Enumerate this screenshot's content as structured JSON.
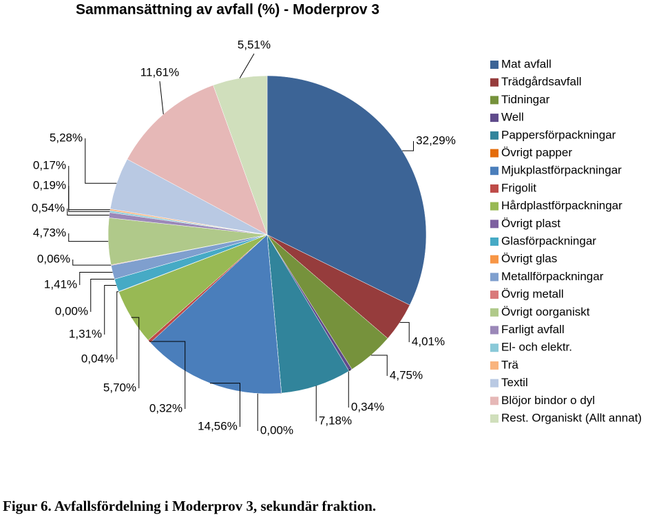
{
  "chart_data": {
    "type": "pie",
    "title": "Sammansättning av avfall (%) - Moderprov 3",
    "categories": [
      "Mat avfall",
      "Trädgårdsavfall",
      "Tidningar",
      "Well",
      "Pappersförpackningar",
      "Övrigt papper",
      "Mjukplastförpackningar",
      "Frigolit",
      "Hårdplastförpackningar",
      "Övrigt plast",
      "Glasförpackningar",
      "Övrigt glas",
      "Metallförpackningar",
      "Övrig metall",
      "Övrigt oorganiskt",
      "Farligt avfall",
      "El- och elektr.",
      "Trä",
      "Textil",
      "Blöjor bindor o dyl",
      "Rest. Organiskt (Allt annat)"
    ],
    "values": [
      32.29,
      4.01,
      4.75,
      0.34,
      7.18,
      0.0,
      14.56,
      0.32,
      5.7,
      0.04,
      1.31,
      0.0,
      1.41,
      0.06,
      4.73,
      0.54,
      0.19,
      0.17,
      5.28,
      11.61,
      5.51
    ],
    "value_labels": [
      "32,29%",
      "4,01%",
      "4,75%",
      "0,34%",
      "7,18%",
      "0,00%",
      "14,56%",
      "0,32%",
      "5,70%",
      "0,04%",
      "1,31%",
      "0,00%",
      "1,41%",
      "0,06%",
      "4,73%",
      "0,54%",
      "0,19%",
      "0,17%",
      "5,28%",
      "11,61%",
      "5,51%"
    ],
    "colors": [
      "#3c6496",
      "#963c3c",
      "#76923c",
      "#5f4b8b",
      "#31849b",
      "#e46c0a",
      "#4a7ebb",
      "#be4b48",
      "#98b954",
      "#7d60a0",
      "#46aac5",
      "#f79646",
      "#7f9fce",
      "#d9797a",
      "#b0c98a",
      "#9b88b8",
      "#8ac9d8",
      "#f9b47e",
      "#b9c9e3",
      "#e6b8b7",
      "#d0dfbc"
    ],
    "legend": "right"
  },
  "caption": "Figur 6. Avfallsfördelning i Moderprov 3, sekundär fraktion."
}
